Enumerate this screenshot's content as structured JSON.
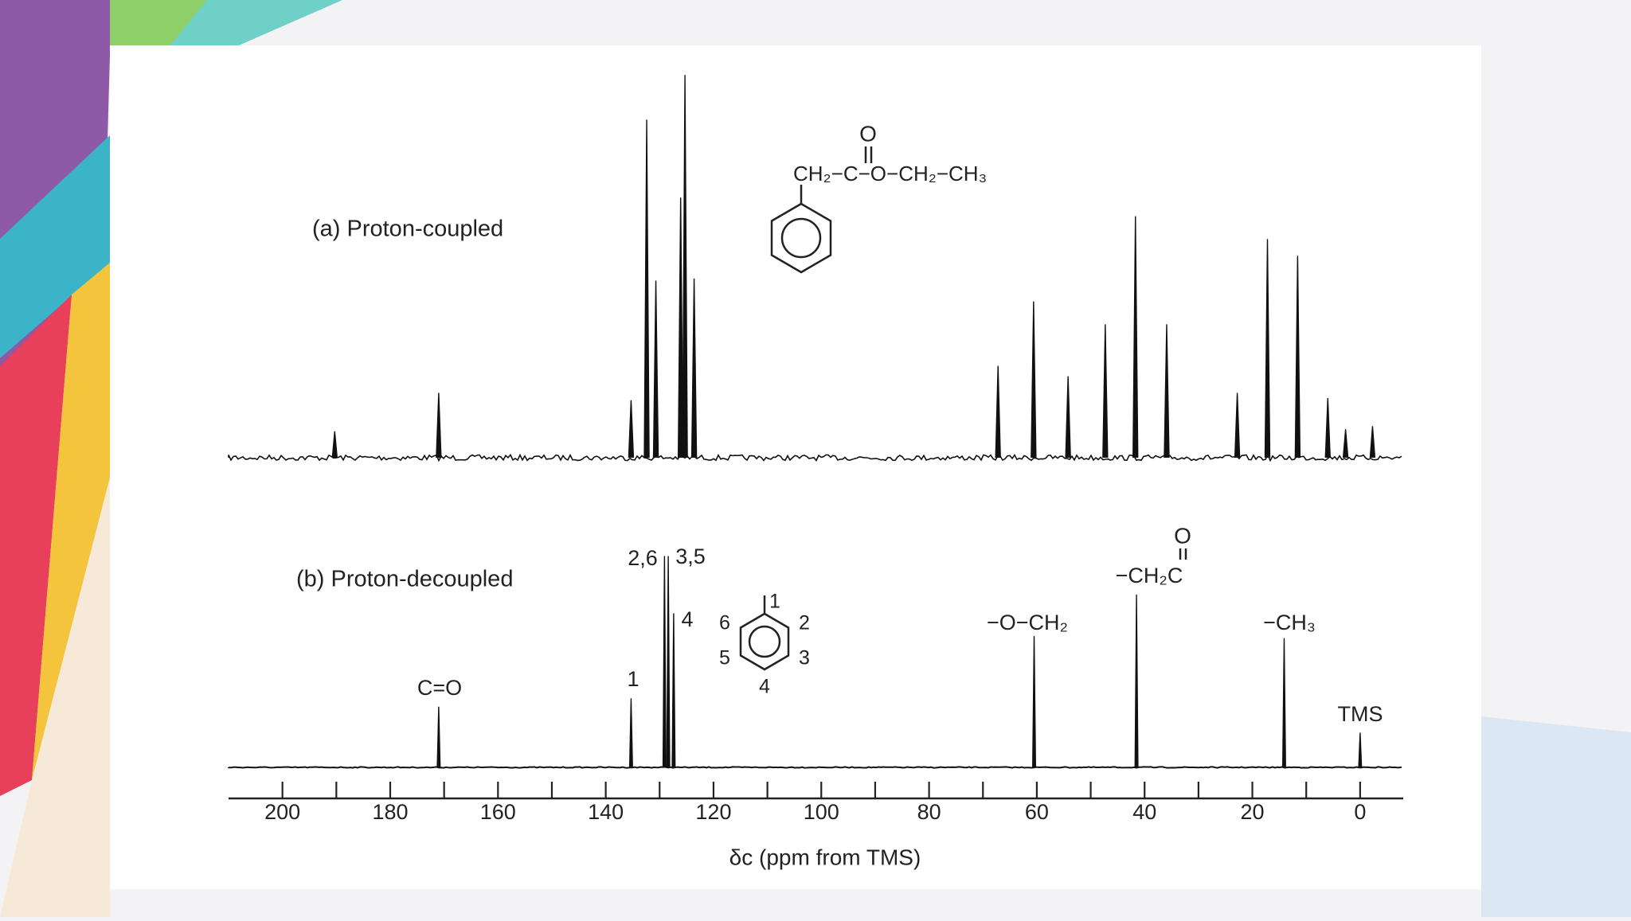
{
  "chart_data": [
    {
      "type": "stem",
      "title": "(a) Proton-coupled",
      "x": [
        190.3,
        171.0,
        135.3,
        132.4,
        130.7,
        126.1,
        125.3,
        123.6,
        67.2,
        60.6,
        54.2,
        47.3,
        41.7,
        35.9,
        22.8,
        17.2,
        11.6,
        6.0,
        2.7,
        -2.3
      ],
      "values": [
        25,
        62,
        55,
        325,
        170,
        250,
        368,
        172,
        88,
        150,
        78,
        128,
        232,
        128,
        62,
        210,
        194,
        57,
        27,
        30
      ],
      "xlim": [
        210,
        -8
      ],
      "ylim": [
        0,
        380
      ],
      "color": "#111111",
      "noise": true
    },
    {
      "type": "stem",
      "title": "(b) Proton-decoupled",
      "x": [
        171.0,
        135.3,
        129.1,
        128.4,
        127.4,
        60.5,
        41.5,
        14.1,
        0
      ],
      "values": [
        58,
        66,
        203,
        203,
        148,
        126,
        166,
        124,
        33
      ],
      "labels": [
        "C=O",
        "1",
        "2,6",
        "3,5",
        "4",
        "−O−CH₂",
        "−CH₂C",
        "−CH₃",
        "TMS"
      ],
      "xlim": [
        210,
        -8
      ],
      "ylim": [
        0,
        210
      ],
      "xticks": [
        0,
        20,
        40,
        60,
        80,
        100,
        120,
        140,
        160,
        180,
        200
      ],
      "xminor": [
        10,
        30,
        50,
        70,
        90,
        110,
        130,
        150,
        170,
        190
      ],
      "xlabel": "δc (ppm from TMS)",
      "color": "#111111",
      "noise": false
    }
  ],
  "structure": {
    "carbonyl_o": "O",
    "chain": "CH₂−C−O−CH₂−CH₃",
    "ring_numbers": [
      "1",
      "2",
      "3",
      "4",
      "5",
      "6"
    ],
    "label_o": "O"
  }
}
